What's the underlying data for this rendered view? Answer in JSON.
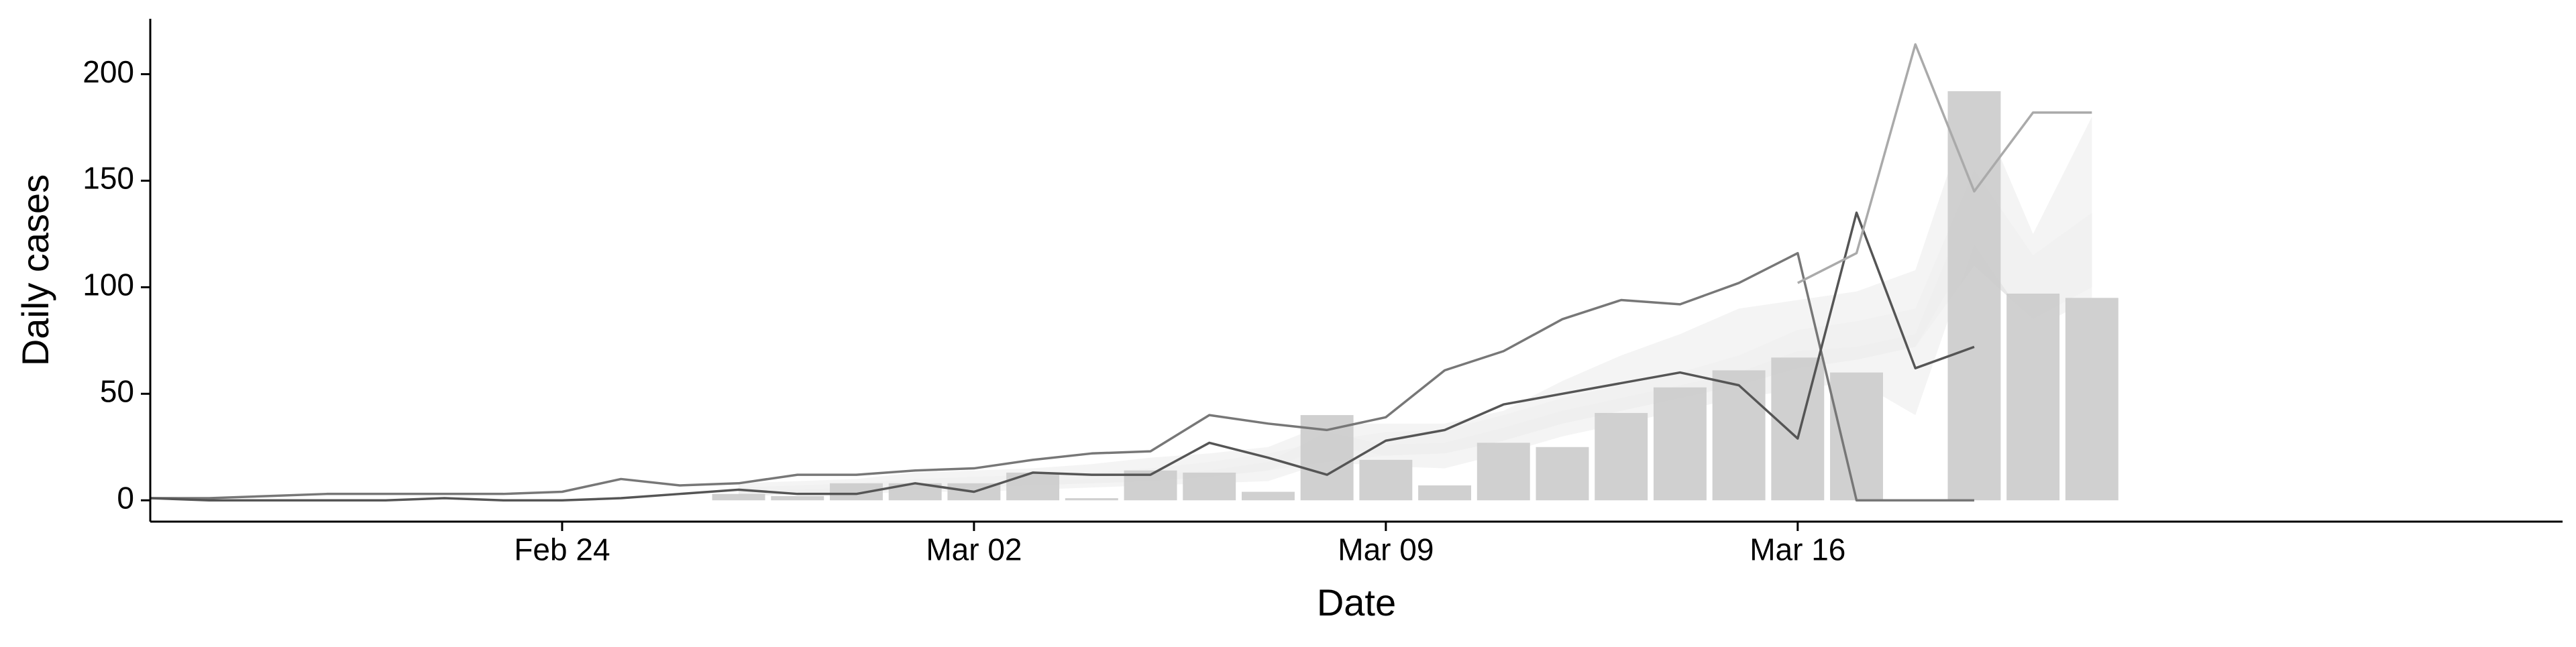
{
  "chart_data": {
    "type": "bar",
    "xlabel": "Date",
    "ylabel": "Daily cases",
    "ylim": [
      -10,
      226
    ],
    "yticks": [
      0,
      50,
      100,
      150,
      200
    ],
    "xticks": [
      {
        "date": "2020-02-24",
        "label": "Feb 24"
      },
      {
        "date": "2020-03-02",
        "label": "Mar 02"
      },
      {
        "date": "2020-03-09",
        "label": "Mar 09"
      },
      {
        "date": "2020-03-16",
        "label": "Mar 16"
      }
    ],
    "xlim": [
      "2020-02-17",
      "2020-03-29"
    ],
    "grid": false,
    "legend": "none",
    "bars": {
      "color": "#cccccc",
      "dates": [
        "2020-02-20",
        "2020-02-21",
        "2020-02-22",
        "2020-02-23",
        "2020-02-24",
        "2020-02-25",
        "2020-02-26",
        "2020-02-27",
        "2020-02-28",
        "2020-02-29",
        "2020-03-01",
        "2020-03-02",
        "2020-03-03",
        "2020-03-04",
        "2020-03-05",
        "2020-03-06",
        "2020-03-07",
        "2020-03-08",
        "2020-03-09",
        "2020-03-10",
        "2020-03-11",
        "2020-03-12",
        "2020-03-13",
        "2020-03-14",
        "2020-03-15",
        "2020-03-16",
        "2020-03-17",
        "2020-03-18",
        "2020-03-19",
        "2020-03-20",
        "2020-03-21",
        "2020-03-22"
      ],
      "values": [
        0,
        0,
        0,
        0,
        0,
        0,
        0,
        3,
        2,
        8,
        8,
        8,
        13,
        1,
        14,
        13,
        4,
        40,
        19,
        7,
        27,
        25,
        41,
        53,
        61,
        67,
        60,
        0,
        192,
        97,
        95,
        0
      ]
    },
    "series": [
      {
        "kind": "band",
        "color": "#e3e3e3",
        "dates": [
          "2020-02-27",
          "2020-02-28",
          "2020-02-29",
          "2020-03-01",
          "2020-03-02",
          "2020-03-03",
          "2020-03-04",
          "2020-03-05",
          "2020-03-06",
          "2020-03-07",
          "2020-03-08",
          "2020-03-09",
          "2020-03-10",
          "2020-03-11",
          "2020-03-12",
          "2020-03-13",
          "2020-03-14",
          "2020-03-15",
          "2020-03-16",
          "2020-03-17",
          "2020-03-18",
          "2020-03-19",
          "2020-03-20",
          "2020-03-21"
        ],
        "upper": [
          6,
          7,
          8,
          10,
          11,
          12,
          13,
          15,
          18,
          22,
          28,
          32,
          33,
          40,
          48,
          54,
          60,
          68,
          80,
          84,
          90,
          155,
          115,
          135
        ],
        "lower": [
          2,
          3,
          4,
          5,
          6,
          7,
          8,
          9,
          11,
          14,
          18,
          21,
          22,
          28,
          36,
          42,
          48,
          54,
          62,
          66,
          72,
          110,
          85,
          100
        ]
      },
      {
        "kind": "band",
        "color": "#d6d6d6",
        "dates": [
          "2020-02-27",
          "2020-02-28",
          "2020-02-29",
          "2020-03-01",
          "2020-03-02",
          "2020-03-03",
          "2020-03-04",
          "2020-03-05",
          "2020-03-06",
          "2020-03-07",
          "2020-03-08",
          "2020-03-09",
          "2020-03-10",
          "2020-03-11",
          "2020-03-12",
          "2020-03-13",
          "2020-03-14",
          "2020-03-15",
          "2020-03-16",
          "2020-03-17",
          "2020-03-18",
          "2020-03-19"
        ],
        "upper": [
          4,
          5,
          6,
          7,
          8,
          9,
          10,
          12,
          14,
          18,
          32,
          26,
          27,
          34,
          42,
          48,
          54,
          60,
          70,
          72,
          78,
          145
        ],
        "lower": [
          2,
          3,
          4,
          5,
          6,
          7,
          8,
          9,
          11,
          14,
          26,
          21,
          22,
          28,
          36,
          42,
          48,
          54,
          62,
          66,
          72,
          120
        ]
      },
      {
        "kind": "band",
        "color": "#f2f2f2",
        "dates": [
          "2020-02-27",
          "2020-02-28",
          "2020-02-29",
          "2020-03-01",
          "2020-03-02",
          "2020-03-03",
          "2020-03-04",
          "2020-03-05",
          "2020-03-06",
          "2020-03-07",
          "2020-03-08",
          "2020-03-09",
          "2020-03-10",
          "2020-03-11",
          "2020-03-12",
          "2020-03-13",
          "2020-03-14",
          "2020-03-15",
          "2020-03-16",
          "2020-03-17",
          "2020-03-18",
          "2020-03-19",
          "2020-03-20",
          "2020-03-21"
        ],
        "upper": [
          8,
          9,
          10,
          13,
          14,
          15,
          17,
          20,
          22,
          25,
          36,
          36,
          36,
          42,
          56,
          68,
          78,
          90,
          94,
          98,
          108,
          190,
          125,
          180
        ],
        "lower": [
          2,
          3,
          3,
          4,
          4,
          5,
          6,
          7,
          8,
          9,
          18,
          16,
          15,
          22,
          30,
          36,
          42,
          48,
          52,
          56,
          40,
          120,
          80,
          95
        ]
      },
      {
        "kind": "line",
        "color": "#777777",
        "dates": [
          "2020-02-17",
          "2020-02-18",
          "2020-02-19",
          "2020-02-20",
          "2020-02-21",
          "2020-02-22",
          "2020-02-23",
          "2020-02-24",
          "2020-02-25",
          "2020-02-26",
          "2020-02-27",
          "2020-02-28",
          "2020-02-29",
          "2020-03-01",
          "2020-03-02",
          "2020-03-03",
          "2020-03-04",
          "2020-03-05",
          "2020-03-06",
          "2020-03-07",
          "2020-03-08",
          "2020-03-09",
          "2020-03-10",
          "2020-03-11",
          "2020-03-12",
          "2020-03-13",
          "2020-03-14",
          "2020-03-15",
          "2020-03-16",
          "2020-03-17",
          "2020-03-18",
          "2020-03-19"
        ],
        "values": [
          1,
          1,
          2,
          3,
          3,
          3,
          3,
          4,
          10,
          7,
          8,
          12,
          12,
          14,
          15,
          19,
          22,
          23,
          40,
          36,
          33,
          39,
          61,
          70,
          85,
          94,
          92,
          102,
          116,
          0,
          0,
          0
        ]
      },
      {
        "kind": "line",
        "color": "#555555",
        "dates": [
          "2020-02-17",
          "2020-02-18",
          "2020-02-19",
          "2020-02-20",
          "2020-02-21",
          "2020-02-22",
          "2020-02-23",
          "2020-02-24",
          "2020-02-25",
          "2020-02-26",
          "2020-02-27",
          "2020-02-28",
          "2020-02-29",
          "2020-03-01",
          "2020-03-02",
          "2020-03-03",
          "2020-03-04",
          "2020-03-05",
          "2020-03-06",
          "2020-03-07",
          "2020-03-08",
          "2020-03-09",
          "2020-03-10",
          "2020-03-11",
          "2020-03-12",
          "2020-03-13",
          "2020-03-14",
          "2020-03-15",
          "2020-03-16",
          "2020-03-17",
          "2020-03-18",
          "2020-03-19"
        ],
        "values": [
          1,
          0,
          0,
          0,
          0,
          1,
          0,
          0,
          1,
          3,
          5,
          3,
          3,
          8,
          4,
          13,
          12,
          12,
          27,
          20,
          12,
          28,
          33,
          45,
          50,
          55,
          60,
          54,
          29,
          135,
          62,
          72
        ]
      },
      {
        "kind": "line",
        "color": "#aaaaaa",
        "dates": [
          "2020-03-16",
          "2020-03-17",
          "2020-03-18",
          "2020-03-19",
          "2020-03-20",
          "2020-03-21"
        ],
        "values": [
          102,
          116,
          214,
          145,
          182,
          182
        ]
      }
    ]
  }
}
